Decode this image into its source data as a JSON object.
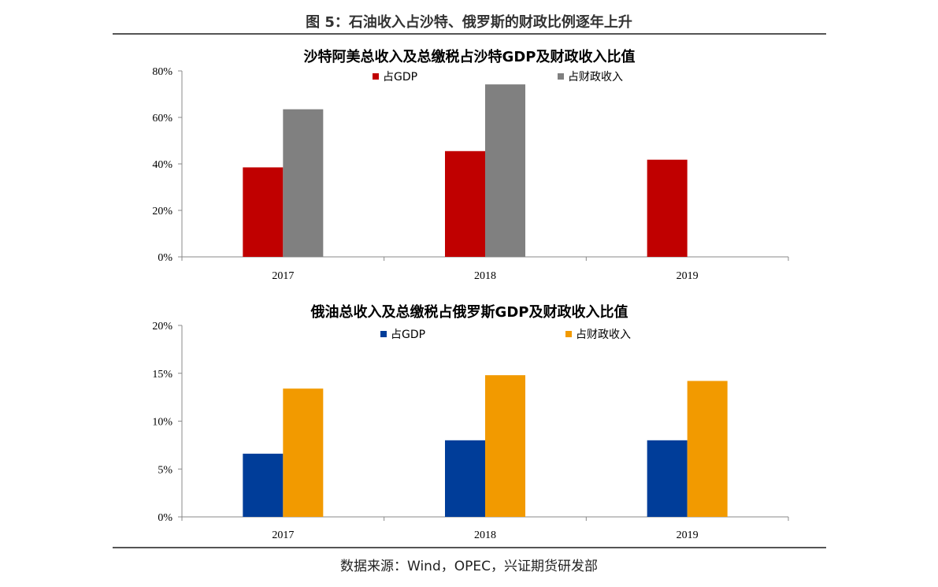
{
  "figure_title": "图 5：石油收入占沙特、俄罗斯的财政比例逐年上升",
  "source": "数据来源：Wind，OPEC，兴证期货研发部",
  "chart_data": [
    {
      "type": "bar",
      "title": "沙特阿美总收入及总缴税占沙特GDP及财政收入比值",
      "categories": [
        "2017",
        "2018",
        "2019"
      ],
      "series": [
        {
          "name": "占GDP",
          "values": [
            38.5,
            45.5,
            41.8
          ],
          "color": "#c00000"
        },
        {
          "name": "占财政收入",
          "values": [
            63.5,
            74.2,
            null
          ],
          "color": "#808080"
        }
      ],
      "ylim": [
        0,
        80
      ],
      "yticks": [
        "0%",
        "20%",
        "40%",
        "60%",
        "80%"
      ],
      "ytick_values": [
        0,
        20,
        40,
        60,
        80
      ],
      "legend_position": "top"
    },
    {
      "type": "bar",
      "title": "俄油总收入及总缴税占俄罗斯GDP及财政收入比值",
      "categories": [
        "2017",
        "2018",
        "2019"
      ],
      "series": [
        {
          "name": "占GDP",
          "values": [
            6.6,
            8.0,
            8.0
          ],
          "color": "#003d99"
        },
        {
          "name": "占财政收入",
          "values": [
            13.4,
            14.8,
            14.2
          ],
          "color": "#f29a00"
        }
      ],
      "ylim": [
        0,
        20
      ],
      "yticks": [
        "0%",
        "5%",
        "10%",
        "15%",
        "20%"
      ],
      "ytick_values": [
        0,
        5,
        10,
        15,
        20
      ],
      "legend_position": "top"
    }
  ]
}
